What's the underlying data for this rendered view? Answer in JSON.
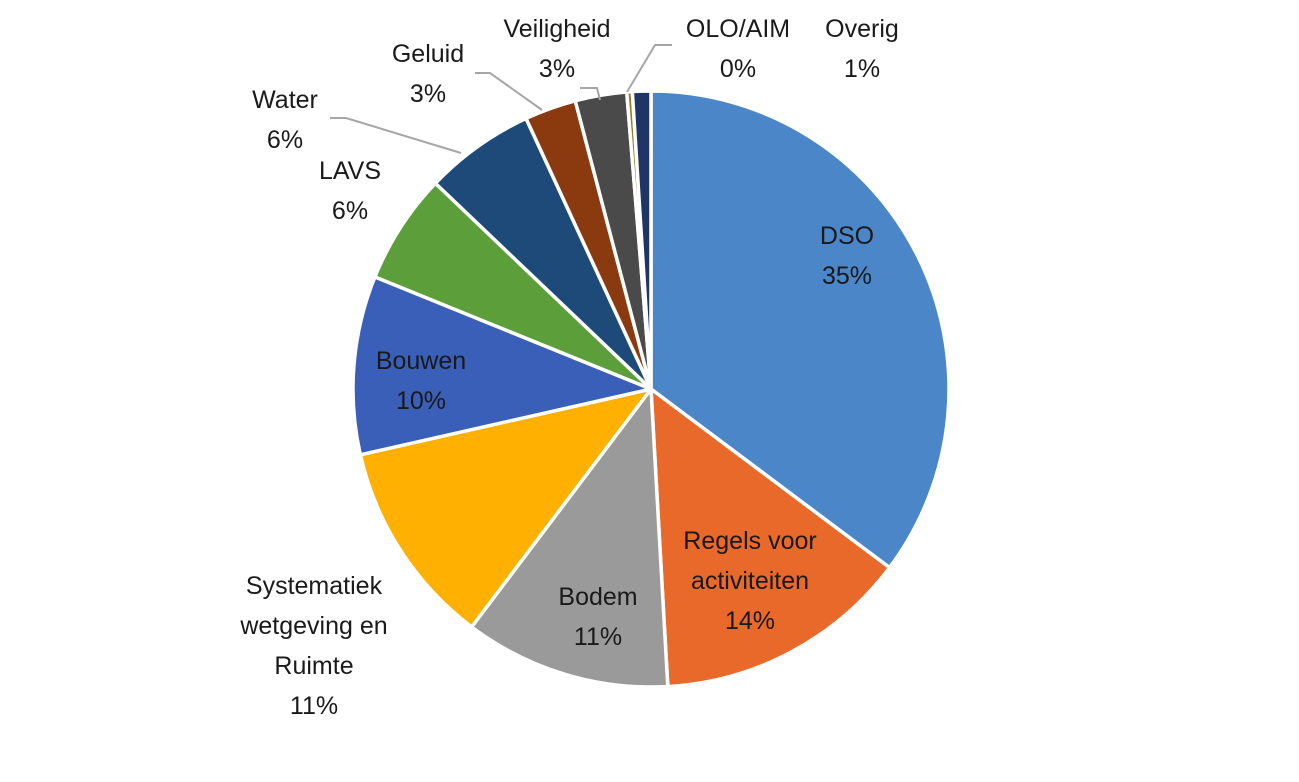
{
  "chart_data": {
    "type": "pie",
    "title": "",
    "slices": [
      {
        "label": [
          "DSO"
        ],
        "pct_label": "35%",
        "value": 35.3,
        "color": "#4a86c8",
        "label_color": "#1a1a1a"
      },
      {
        "label": [
          "Regels voor",
          "activiteiten"
        ],
        "pct_label": "14%",
        "value": 13.9,
        "color": "#e8692a",
        "label_color": "#1a1a1a"
      },
      {
        "label": [
          "Bodem"
        ],
        "pct_label": "11%",
        "value": 11.2,
        "color": "#9a9a9a",
        "label_color": "#1a1a1a"
      },
      {
        "label": [
          "Systematiek",
          "wetgeving en",
          "Ruimte"
        ],
        "pct_label": "11%",
        "value": 11.2,
        "color": "#ffb000",
        "label_color": "#1a1a1a"
      },
      {
        "label": [
          "Bouwen"
        ],
        "pct_label": "10%",
        "value": 9.7,
        "color": "#3a5fb8",
        "label_color": "#1a1a1a"
      },
      {
        "label": [
          "LAVS"
        ],
        "pct_label": "6%",
        "value": 6.0,
        "color": "#5b9e3a",
        "label_color": "#1a1a1a"
      },
      {
        "label": [
          "Water"
        ],
        "pct_label": "6%",
        "value": 6.0,
        "color": "#1e4a7a",
        "label_color": "#1a1a1a"
      },
      {
        "label": [
          "Geluid"
        ],
        "pct_label": "3%",
        "value": 2.8,
        "color": "#8b3a0f",
        "label_color": "#1a1a1a"
      },
      {
        "label": [
          "Veiligheid"
        ],
        "pct_label": "3%",
        "value": 2.8,
        "color": "#4a4a4a",
        "label_color": "#1a1a1a"
      },
      {
        "label": [
          "OLO/AIM"
        ],
        "pct_label": "0%",
        "value": 0.3,
        "color": "#9a7a20",
        "label_color": "#1a1a1a"
      },
      {
        "label": [
          "Overig"
        ],
        "pct_label": "1%",
        "value": 1.0,
        "color": "#1e3566",
        "label_color": "#1a1a1a"
      }
    ]
  }
}
